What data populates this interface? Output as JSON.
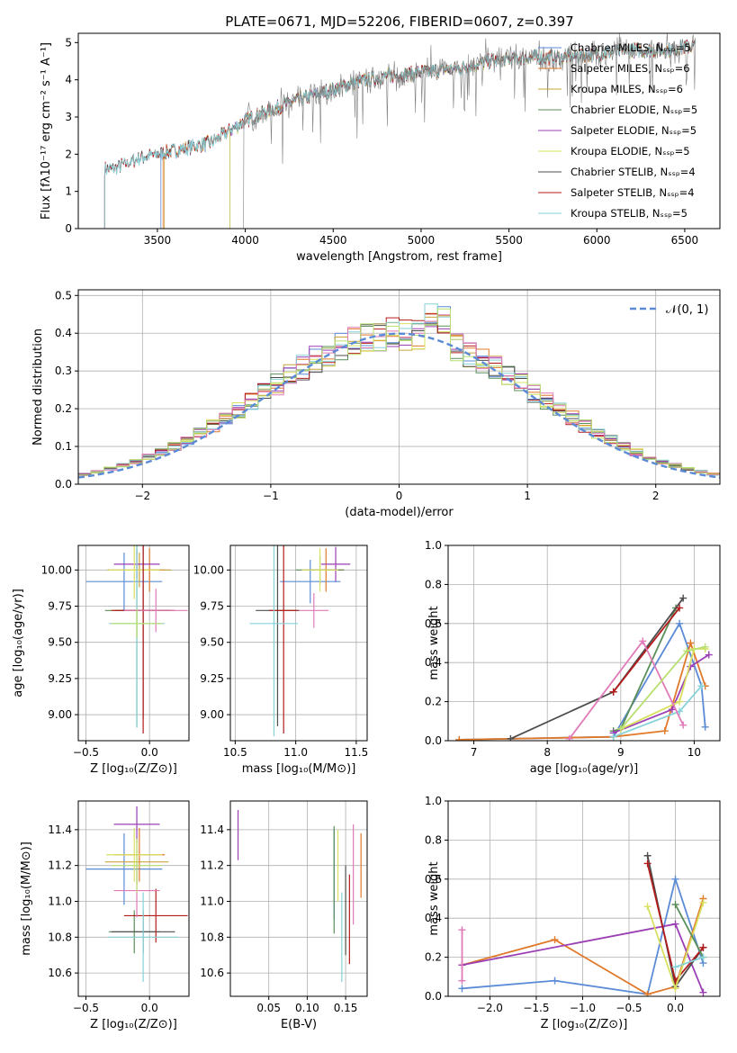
{
  "colors": {
    "blue": "#5b8bd6",
    "orange": "#e0792a",
    "olive": "#c9a43a",
    "green": "#5a8f5a",
    "purple": "#9b3fb5",
    "yellow": "#d8e060",
    "dark": "#4d4d4d",
    "red": "#b31b1b",
    "cyan": "#87d2d8",
    "pink": "#e07ab8",
    "lime": "#b8e070",
    "gray": "#808080",
    "grid": "#b0b0b0"
  },
  "chart_data": [
    {
      "type": "line",
      "title": "PLATE=0671, MJD=52206, FIBERID=0607, z=0.397",
      "xlabel": "wavelength [Angstrom, rest frame]",
      "ylabel": "Flux [fλ10⁻¹⁷ erg cm⁻² s⁻¹ A⁻¹]",
      "xlim": [
        3050,
        6700
      ],
      "ylim": [
        0,
        5.25
      ],
      "xticks": [
        3500,
        4000,
        4500,
        5000,
        5500,
        6000,
        6500
      ],
      "yticks": [
        0,
        1,
        2,
        3,
        4,
        5
      ],
      "grid": false,
      "legend_position": "top-right",
      "data_points": [
        [
          3250,
          1.6
        ],
        [
          3400,
          1.9
        ],
        [
          3600,
          2.1
        ],
        [
          3800,
          2.3
        ],
        [
          4000,
          2.9
        ],
        [
          4200,
          3.3
        ],
        [
          4400,
          3.6
        ],
        [
          4600,
          3.9
        ],
        [
          4800,
          4.1
        ],
        [
          5000,
          4.2
        ],
        [
          5200,
          4.3
        ],
        [
          5400,
          4.5
        ],
        [
          5600,
          4.6
        ],
        [
          5800,
          4.6
        ],
        [
          6000,
          4.7
        ],
        [
          6200,
          4.8
        ],
        [
          6400,
          4.8
        ],
        [
          6550,
          4.9
        ]
      ],
      "series": [
        {
          "name": "Chabrier MILES, N_SSP=5",
          "color": "#5b8bd6",
          "start": 3520
        },
        {
          "name": "Salpeter MILES, N_SSP=6",
          "color": "#e0792a",
          "start": 3530
        },
        {
          "name": "Kroupa MILES, N_SSP=6",
          "color": "#c9a43a",
          "start": 3540
        },
        {
          "name": "Chabrier ELODIE, N_SSP=5",
          "color": "#5a8f5a",
          "start": 3910
        },
        {
          "name": "Salpeter ELODIE, N_SSP=5",
          "color": "#9b3fb5",
          "start": 3910
        },
        {
          "name": "Kroupa ELODIE, N_SSP=5",
          "color": "#d8e060",
          "start": 3910
        },
        {
          "name": "Chabrier STELIB, N_SSP=4",
          "color": "#4d4d4d",
          "start": 3200
        },
        {
          "name": "Salpeter STELIB, N_SSP=4",
          "color": "#b31b1b",
          "start": 3200
        },
        {
          "name": "Kroupa STELIB, N_SSP=5",
          "color": "#87d2d8",
          "start": 3200
        }
      ],
      "data_color": "#808080",
      "data_start": 3990
    },
    {
      "type": "histogram",
      "xlabel": "(data-model)/error",
      "ylabel": "Normed distribution",
      "xlim": [
        -2.5,
        2.5
      ],
      "ylim": [
        0,
        0.515
      ],
      "xticks": [
        -2,
        -1,
        0,
        1,
        2
      ],
      "yticks": [
        0.0,
        0.1,
        0.2,
        0.3,
        0.4,
        0.5
      ],
      "grid": true,
      "legend": "𝒩(0, 1)",
      "legend_position": "top-right",
      "bin_width": 0.1
    },
    {
      "type": "scatter",
      "xlabel": "Z [log₁₀(Z/Z⊙)]",
      "ylabel": "age  [log₁₀(age/yr)]",
      "xlim": [
        -0.56,
        0.31
      ],
      "ylim": [
        8.82,
        10.17
      ],
      "xticks": [
        -0.5,
        0.0
      ],
      "yticks": [
        9.0,
        9.25,
        9.5,
        9.75,
        10.0
      ],
      "grid": true,
      "points": [
        {
          "x": -0.2,
          "xe": 0.3,
          "y": 9.92,
          "ye": 0.2,
          "c": "#5b8bd6"
        },
        {
          "x": 0.0,
          "xe": 0.12,
          "y": 10.0,
          "ye": 0.15,
          "c": "#e0792a"
        },
        {
          "x": -0.08,
          "xe": 0.25,
          "y": 10.0,
          "ye": 0.12,
          "c": "#c9a43a"
        },
        {
          "x": -0.1,
          "xe": 0.25,
          "y": 9.72,
          "ye": 0.8,
          "c": "#5a8f5a"
        },
        {
          "x": -0.1,
          "xe": 0.18,
          "y": 10.04,
          "ye": 0.1,
          "c": "#9b3fb5"
        },
        {
          "x": -0.12,
          "xe": 0.2,
          "y": 10.0,
          "ye": 0.2,
          "c": "#d8e060"
        },
        {
          "x": -0.05,
          "xe": 0.22,
          "y": 9.72,
          "ye": 0.75,
          "c": "#4d4d4d"
        },
        {
          "x": -0.05,
          "xe": 0.25,
          "y": 9.72,
          "ye": 0.85,
          "c": "#b31b1b"
        },
        {
          "x": -0.1,
          "xe": 0.22,
          "y": 9.63,
          "ye": 0.72,
          "c": "#87d2d8"
        },
        {
          "x": 0.05,
          "xe": 0.25,
          "y": 9.72,
          "ye": 0.15,
          "c": "#e07ab8"
        },
        {
          "x": -0.1,
          "xe": 0.2,
          "y": 9.63,
          "ye": 0.1,
          "c": "#b8e070"
        }
      ]
    },
    {
      "type": "scatter",
      "xlabel": "mass [log₁₀(M/M⊙)]",
      "xlim": [
        10.46,
        11.59
      ],
      "ylim": [
        8.82,
        10.17
      ],
      "xticks": [
        10.5,
        11.0,
        11.5
      ],
      "yticks": [
        9.0,
        9.25,
        9.5,
        9.75,
        10.0
      ],
      "grid": true,
      "points": [
        {
          "x": 11.12,
          "xe": 0.25,
          "y": 9.92,
          "ye": 0.15,
          "c": "#5b8bd6"
        },
        {
          "x": 11.25,
          "xe": 0.15,
          "y": 10.0,
          "ye": 0.15,
          "c": "#e0792a"
        },
        {
          "x": 11.2,
          "xe": 0.2,
          "y": 10.0,
          "ye": 0.1,
          "c": "#5a8f5a"
        },
        {
          "x": 11.33,
          "xe": 0.12,
          "y": 10.04,
          "ye": 0.12,
          "c": "#9b3fb5"
        },
        {
          "x": 11.2,
          "xe": 0.15,
          "y": 10.0,
          "ye": 0.15,
          "c": "#d8e060"
        },
        {
          "x": 10.85,
          "xe": 0.18,
          "y": 9.72,
          "ye": 0.8,
          "c": "#4d4d4d"
        },
        {
          "x": 10.9,
          "xe": 0.12,
          "y": 9.72,
          "ye": 0.85,
          "c": "#b31b1b"
        },
        {
          "x": 10.82,
          "xe": 0.2,
          "y": 9.63,
          "ye": 0.78,
          "c": "#87d2d8"
        },
        {
          "x": 11.15,
          "xe": 0.12,
          "y": 9.72,
          "ye": 0.12,
          "c": "#e07ab8"
        }
      ]
    },
    {
      "type": "line",
      "xlabel": "age  [log₁₀(age/yr)]",
      "ylabel": "mass weight",
      "xlim": [
        6.65,
        10.35
      ],
      "ylim": [
        0,
        1.0
      ],
      "xticks": [
        7,
        8,
        9,
        10
      ],
      "yticks": [
        0.0,
        0.2,
        0.4,
        0.6,
        0.8,
        1.0
      ],
      "grid": true,
      "series": [
        {
          "c": "#5b8bd6",
          "x": [
            6.8,
            8.9,
            9.8,
            10.1,
            10.15
          ],
          "y": [
            0.005,
            0.02,
            0.6,
            0.28,
            0.07
          ]
        },
        {
          "c": "#e0792a",
          "x": [
            6.8,
            8.9,
            9.6,
            9.95,
            10.15
          ],
          "y": [
            0.005,
            0.02,
            0.05,
            0.5,
            0.28
          ]
        },
        {
          "c": "#5a8f5a",
          "x": [
            8.9,
            9.0,
            9.75
          ],
          "y": [
            0.05,
            0.06,
            0.68
          ]
        },
        {
          "c": "#9b3fb5",
          "x": [
            8.9,
            9.7,
            9.95,
            10.2
          ],
          "y": [
            0.04,
            0.16,
            0.38,
            0.44
          ]
        },
        {
          "c": "#d8e060",
          "x": [
            9.0,
            9.8,
            10.0,
            10.15
          ],
          "y": [
            0.06,
            0.2,
            0.47,
            0.47
          ]
        },
        {
          "c": "#4d4d4d",
          "x": [
            7.5,
            8.9,
            9.85
          ],
          "y": [
            0.01,
            0.25,
            0.73
          ]
        },
        {
          "c": "#b31b1b",
          "x": [
            8.9,
            9.8
          ],
          "y": [
            0.25,
            0.68
          ]
        },
        {
          "c": "#87d2d8",
          "x": [
            8.9,
            9.8,
            10.1
          ],
          "y": [
            0.02,
            0.15,
            0.28
          ]
        },
        {
          "c": "#e07ab8",
          "x": [
            8.3,
            9.3,
            9.85
          ],
          "y": [
            0.01,
            0.51,
            0.08
          ]
        },
        {
          "c": "#b8e070",
          "x": [
            9.0,
            9.9,
            10.15
          ],
          "y": [
            0.06,
            0.46,
            0.48
          ]
        }
      ]
    },
    {
      "type": "scatter",
      "xlabel": "Z [log₁₀(Z/Z⊙)]",
      "ylabel": "mass [log₁₀(M/M⊙)]",
      "xlim": [
        -0.56,
        0.31
      ],
      "ylim": [
        10.47,
        11.56
      ],
      "xticks": [
        -0.5,
        0.0
      ],
      "yticks": [
        10.6,
        10.8,
        11.0,
        11.2,
        11.4
      ],
      "grid": true,
      "points": [
        {
          "x": -0.2,
          "xe": 0.3,
          "y": 11.18,
          "ye": 0.2,
          "c": "#5b8bd6"
        },
        {
          "x": -0.08,
          "xe": 0.2,
          "y": 11.26,
          "ye": 0.15,
          "c": "#e0792a"
        },
        {
          "x": -0.1,
          "xe": 0.25,
          "y": 11.22,
          "ye": 0.12,
          "c": "#c9a43a"
        },
        {
          "x": -0.12,
          "xe": 0.2,
          "y": 10.83,
          "ye": 0.12,
          "c": "#5a8f5a"
        },
        {
          "x": -0.1,
          "xe": 0.18,
          "y": 11.43,
          "ye": 0.1,
          "c": "#9b3fb5"
        },
        {
          "x": -0.12,
          "xe": 0.22,
          "y": 11.26,
          "ye": 0.15,
          "c": "#d8e060"
        },
        {
          "x": -0.05,
          "xe": 0.25,
          "y": 10.83,
          "ye": 0.12,
          "c": "#4d4d4d"
        },
        {
          "x": 0.05,
          "xe": 0.25,
          "y": 10.92,
          "ye": 0.15,
          "c": "#b31b1b"
        },
        {
          "x": -0.05,
          "xe": 0.28,
          "y": 10.8,
          "ye": 0.25,
          "c": "#87d2d8"
        },
        {
          "x": -0.1,
          "xe": 0.18,
          "y": 11.06,
          "ye": 0.15,
          "c": "#e07ab8"
        },
        {
          "x": -0.1,
          "xe": 0.2,
          "y": 11.2,
          "ye": 0.15,
          "c": "#b8e070"
        }
      ]
    },
    {
      "type": "scatter",
      "xlabel": "E(B-V)",
      "xlim": [
        0.0,
        0.178
      ],
      "ylim": [
        10.47,
        11.56
      ],
      "xticks": [
        0.05,
        0.1,
        0.15
      ],
      "yticks": [
        10.6,
        10.8,
        11.0,
        11.2,
        11.4
      ],
      "grid": true,
      "points": [
        {
          "x": 0.01,
          "y": 11.37,
          "ye": 0.14,
          "c": "#9b3fb5"
        },
        {
          "x": 0.135,
          "y": 11.15,
          "ye": 0.25,
          "c": "#5b8bd6"
        },
        {
          "x": 0.135,
          "y": 11.12,
          "ye": 0.3,
          "c": "#5a8f5a"
        },
        {
          "x": 0.14,
          "y": 11.2,
          "ye": 0.2,
          "c": "#d8e060"
        },
        {
          "x": 0.145,
          "y": 10.8,
          "ye": 0.25,
          "c": "#87d2d8"
        },
        {
          "x": 0.15,
          "y": 10.95,
          "ye": 0.25,
          "c": "#4d4d4d"
        },
        {
          "x": 0.155,
          "y": 10.9,
          "ye": 0.25,
          "c": "#b31b1b"
        },
        {
          "x": 0.16,
          "y": 11.15,
          "ye": 0.28,
          "c": "#e07ab8"
        },
        {
          "x": 0.17,
          "y": 11.2,
          "ye": 0.18,
          "c": "#e0792a"
        }
      ]
    },
    {
      "type": "line",
      "xlabel": "Z [log₁₀(Z/Z⊙)]",
      "ylabel": "mass weight",
      "xlim": [
        -2.45,
        0.48
      ],
      "ylim": [
        0,
        1.0
      ],
      "xticks": [
        -2.0,
        -1.5,
        -1.0,
        -0.5,
        0.0
      ],
      "yticks": [
        0.0,
        0.2,
        0.4,
        0.6,
        0.8,
        1.0
      ],
      "grid": true,
      "series": [
        {
          "c": "#5b8bd6",
          "x": [
            -2.3,
            -1.3,
            -0.3,
            0.0,
            0.3
          ],
          "y": [
            0.04,
            0.08,
            0.01,
            0.6,
            0.17
          ]
        },
        {
          "c": "#e0792a",
          "x": [
            -2.3,
            -1.3,
            -0.3,
            0.0,
            0.3
          ],
          "y": [
            0.16,
            0.29,
            0.01,
            0.05,
            0.5
          ]
        },
        {
          "c": "#9b3fb5",
          "x": [
            -2.3,
            0.0,
            0.3
          ],
          "y": [
            0.16,
            0.37,
            0.02
          ]
        },
        {
          "c": "#4d4d4d",
          "x": [
            -0.3,
            0.0,
            0.3
          ],
          "y": [
            0.72,
            0.05,
            0.25
          ]
        },
        {
          "c": "#b31b1b",
          "x": [
            -0.3,
            0.0,
            0.3
          ],
          "y": [
            0.68,
            0.08,
            0.25
          ]
        },
        {
          "c": "#d8e060",
          "x": [
            -0.3,
            0.0,
            0.3
          ],
          "y": [
            0.46,
            0.04,
            0.48
          ]
        },
        {
          "c": "#5a8f5a",
          "x": [
            0.0,
            0.3
          ],
          "y": [
            0.47,
            0.2
          ]
        },
        {
          "c": "#87d2d8",
          "x": [
            0.0,
            0.3
          ],
          "y": [
            0.15,
            0.2
          ]
        },
        {
          "c": "#e07ab8",
          "x": [
            -2.3,
            -2.3
          ],
          "y": [
            0.34,
            0.08
          ]
        }
      ]
    }
  ]
}
